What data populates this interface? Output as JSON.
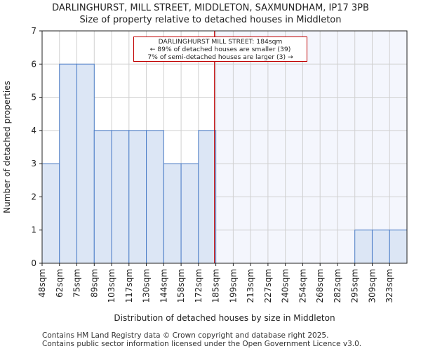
{
  "title": "DARLINGHURST, MILL STREET, MIDDLETON, SAXMUNDHAM, IP17 3PB",
  "subtitle": "Size of property relative to detached houses in Middleton",
  "footer": {
    "line1": "Contains HM Land Registry data © Crown copyright and database right 2025.",
    "line2": "Contains public sector information licensed under the Open Government Licence v3.0."
  },
  "annotation": {
    "line1": "DARLINGHURST MILL STREET: 184sqm",
    "line2": "← 89% of detached houses are smaller (39)",
    "line3": "7% of semi-detached houses are larger (3) →"
  },
  "colors": {
    "bar_fill": "#dce6f5",
    "bar_edge": "#4a7cc7",
    "highlight_bg": "#f4f6fd",
    "marker": "#c00000",
    "grid": "#d0d0d0"
  },
  "chart_data": {
    "type": "bar",
    "title": "DARLINGHURST, MILL STREET, MIDDLETON, SAXMUNDHAM, IP17 3PB",
    "subtitle": "Size of property relative to detached houses in Middleton",
    "xlabel": "Distribution of detached houses by size in Middleton",
    "ylabel": "Number of detached properties",
    "categories": [
      "48sqm",
      "62sqm",
      "75sqm",
      "89sqm",
      "103sqm",
      "117sqm",
      "130sqm",
      "144sqm",
      "158sqm",
      "172sqm",
      "185sqm",
      "199sqm",
      "213sqm",
      "227sqm",
      "240sqm",
      "254sqm",
      "268sqm",
      "282sqm",
      "295sqm",
      "309sqm",
      "323sqm"
    ],
    "values": [
      3,
      6,
      6,
      4,
      4,
      4,
      4,
      3,
      3,
      4,
      0,
      0,
      0,
      0,
      0,
      0,
      0,
      0,
      1,
      1,
      1
    ],
    "ylim": [
      0,
      7
    ],
    "yticks": [
      0,
      1,
      2,
      3,
      4,
      5,
      6,
      7
    ],
    "grid": true,
    "marker_value": 184,
    "highlight_from_category": "185sqm"
  }
}
